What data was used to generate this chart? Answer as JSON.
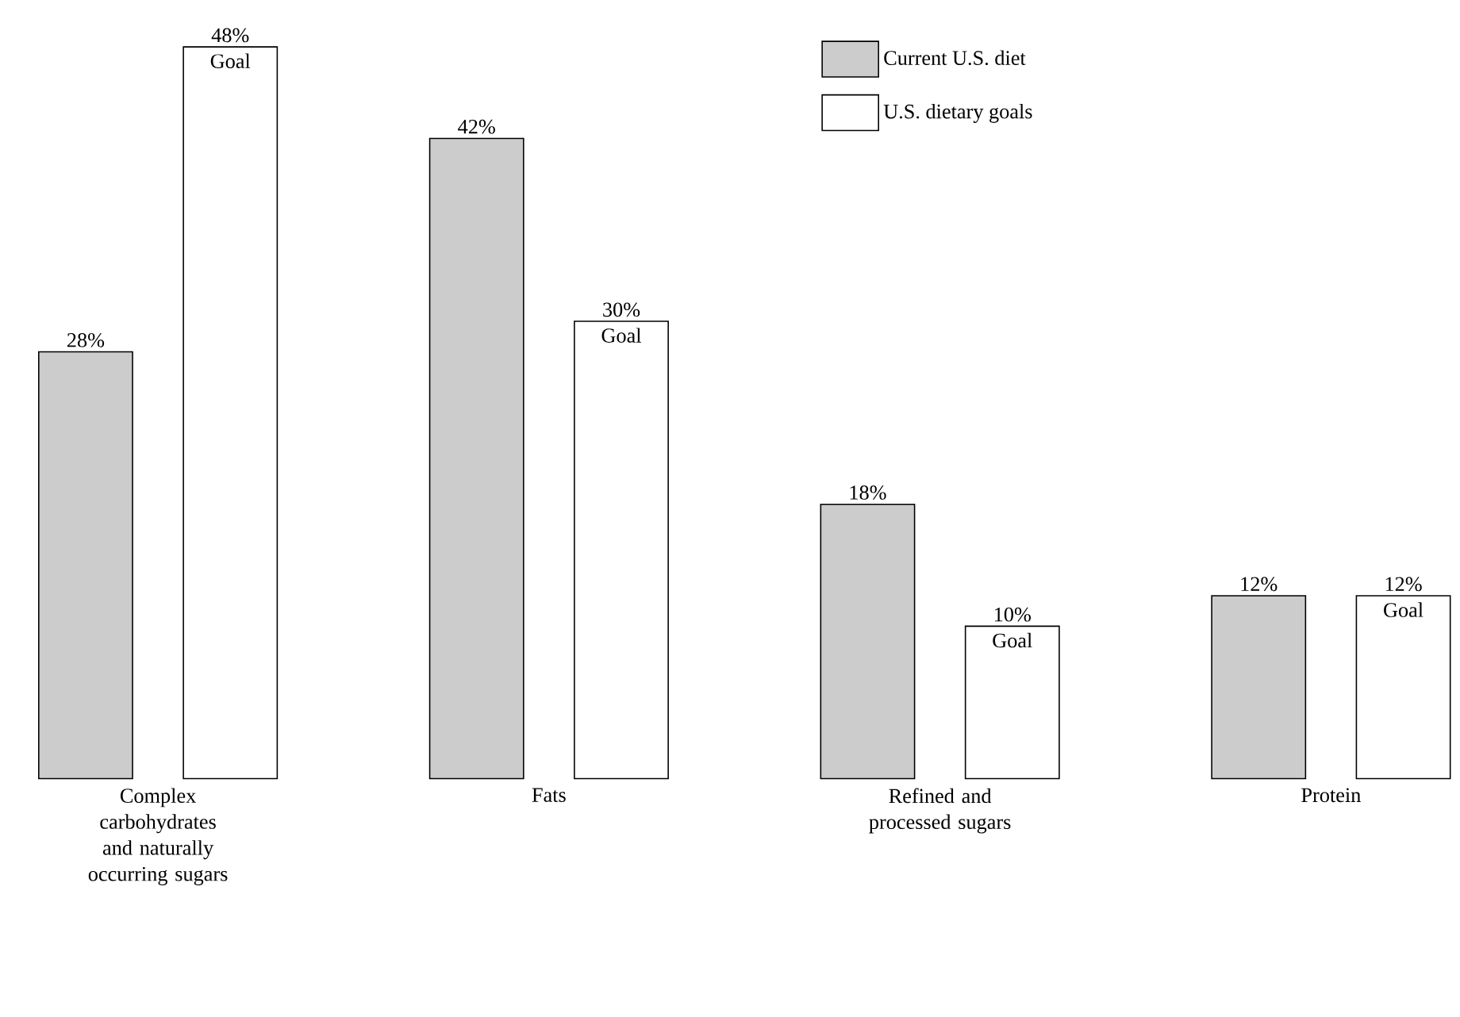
{
  "chart_data": {
    "type": "bar",
    "categories": [
      "Complex carbohydrates and naturally occurring sugars",
      "Fats",
      "Refined and processed sugars",
      "Protein"
    ],
    "series": [
      {
        "name": "Current U.S. diet",
        "color": "#cccccc",
        "values": [
          28,
          42,
          18,
          12
        ],
        "value_labels": [
          "28%",
          "42%",
          "18%",
          "12%"
        ]
      },
      {
        "name": "U.S. dietary goals",
        "color": "#ffffff",
        "values": [
          48,
          30,
          10,
          12
        ],
        "value_labels": [
          "48%",
          "30%",
          "10%",
          "12%"
        ]
      }
    ],
    "annotations": [
      "Goal",
      "Goal",
      "Goal",
      "Goal"
    ],
    "legend": "top right"
  }
}
